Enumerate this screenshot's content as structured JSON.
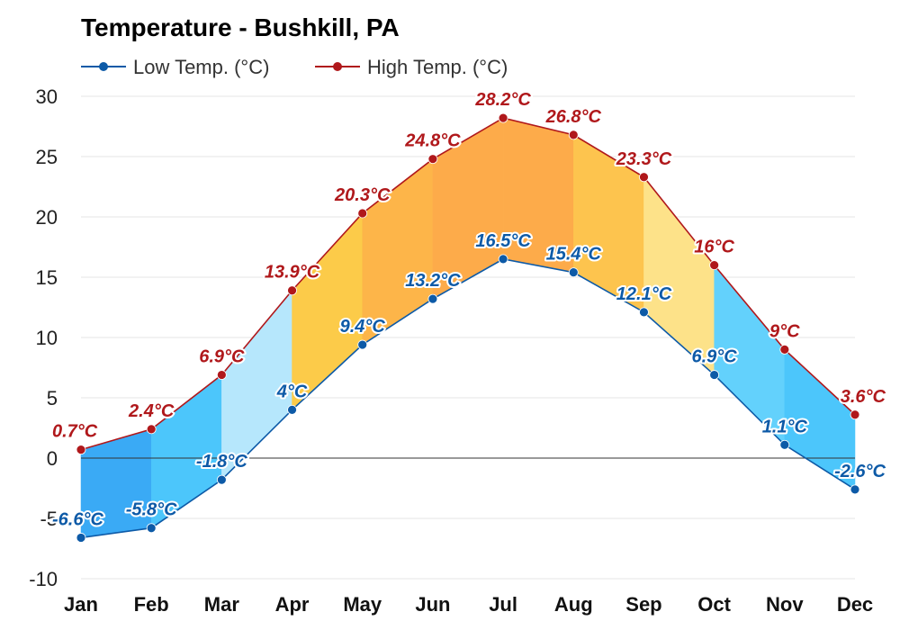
{
  "chart_data": {
    "type": "area",
    "title": "Temperature - Bushkill, PA",
    "categories": [
      "Jan",
      "Feb",
      "Mar",
      "Apr",
      "May",
      "Jun",
      "Jul",
      "Aug",
      "Sep",
      "Oct",
      "Nov",
      "Dec"
    ],
    "series": [
      {
        "name": "Low Temp. (°C)",
        "color": "#0d5aa7",
        "values": [
          -6.6,
          -5.8,
          -1.8,
          4,
          9.4,
          13.2,
          16.5,
          15.4,
          12.1,
          6.9,
          1.1,
          -2.6
        ],
        "labels": [
          "-6.6°C",
          "-5.8°C",
          "-1.8°C",
          "4°C",
          "9.4°C",
          "13.2°C",
          "16.5°C",
          "15.4°C",
          "12.1°C",
          "6.9°C",
          "1.1°C",
          "-2.6°C"
        ]
      },
      {
        "name": "High Temp. (°C)",
        "color": "#b0181b",
        "values": [
          0.7,
          2.4,
          6.9,
          13.9,
          20.3,
          24.8,
          28.2,
          26.8,
          23.3,
          16,
          9,
          3.6
        ],
        "labels": [
          "0.7°C",
          "2.4°C",
          "6.9°C",
          "13.9°C",
          "20.3°C",
          "24.8°C",
          "28.2°C",
          "26.8°C",
          "23.3°C",
          "16°C",
          "9°C",
          "3.6°C"
        ]
      }
    ],
    "band_colors": [
      "#3aaaf5",
      "#4cc6fb",
      "#b6e7fc",
      "#fccb49",
      "#fdb549",
      "#fdab4a",
      "#fdab4a",
      "#fdc44e",
      "#fde289",
      "#63d1fc",
      "#4cc6fb",
      "#3aaaf5"
    ],
    "yticks": [
      "30",
      "25",
      "20",
      "15",
      "10",
      "5",
      "0",
      "-5",
      "-10"
    ],
    "ytick_values": [
      30,
      25,
      20,
      15,
      10,
      5,
      0,
      -5,
      -10
    ],
    "ylim": [
      -10,
      30
    ],
    "xlabel": "",
    "ylabel": "",
    "grid": true,
    "legend_position": "top-left"
  }
}
